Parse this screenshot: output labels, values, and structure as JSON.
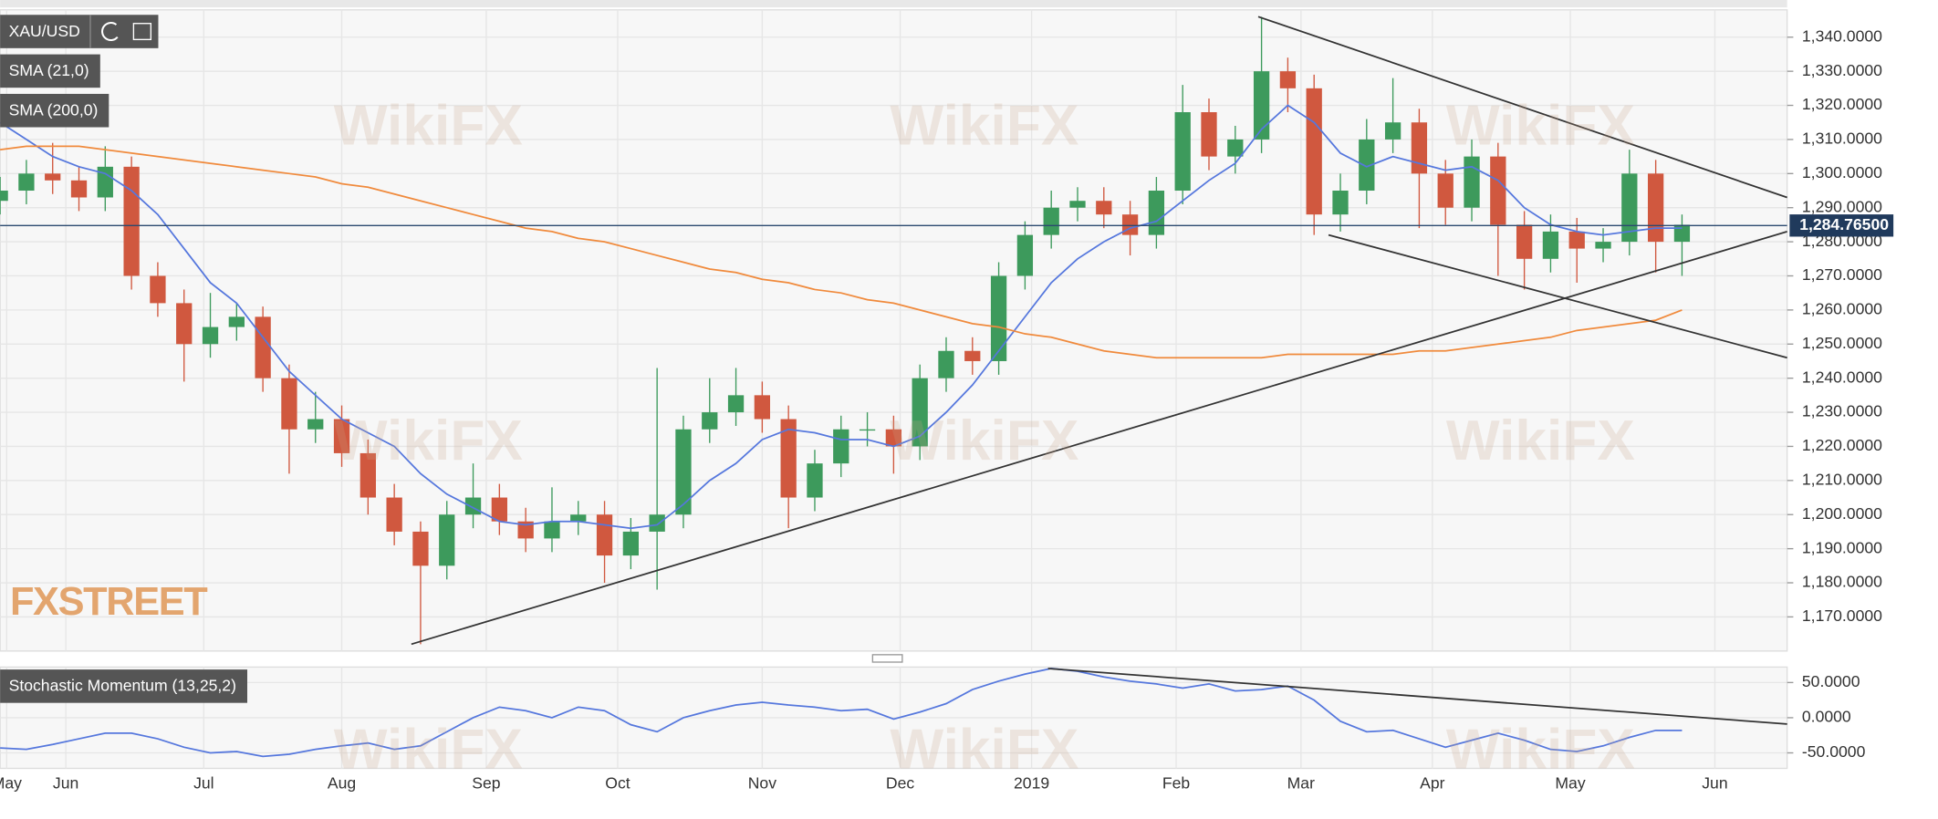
{
  "chart_data": {
    "type": "candlestick",
    "title": "XAU/USD",
    "watermark": "WikiFX",
    "logo": "FXSTREET",
    "grid": true,
    "up_color": "#3d9a5c",
    "down_color": "#d0583f",
    "xlim": [
      0,
      272
    ],
    "xticks": [
      {
        "value": 1,
        "label": "May"
      },
      {
        "value": 10,
        "label": "Jun"
      },
      {
        "value": 31,
        "label": "Jul"
      },
      {
        "value": 52,
        "label": "Aug"
      },
      {
        "value": 74,
        "label": "Sep"
      },
      {
        "value": 94,
        "label": "Oct"
      },
      {
        "value": 116,
        "label": "Nov"
      },
      {
        "value": 137,
        "label": "Dec"
      },
      {
        "value": 157,
        "label": "2019"
      },
      {
        "value": 179,
        "label": "Feb"
      },
      {
        "value": 198,
        "label": "Mar"
      },
      {
        "value": 218,
        "label": "Apr"
      },
      {
        "value": 239,
        "label": "May"
      },
      {
        "value": 261,
        "label": "Jun"
      }
    ],
    "ylim": [
      1160,
      1348
    ],
    "yticks": [
      {
        "value": 1170,
        "label": "1,170.0000"
      },
      {
        "value": 1180,
        "label": "1,180.0000"
      },
      {
        "value": 1190,
        "label": "1,190.0000"
      },
      {
        "value": 1200,
        "label": "1,200.0000"
      },
      {
        "value": 1210,
        "label": "1,210.0000"
      },
      {
        "value": 1220,
        "label": "1,220.0000"
      },
      {
        "value": 1230,
        "label": "1,230.0000"
      },
      {
        "value": 1240,
        "label": "1,240.0000"
      },
      {
        "value": 1250,
        "label": "1,250.0000"
      },
      {
        "value": 1260,
        "label": "1,260.0000"
      },
      {
        "value": 1270,
        "label": "1,270.0000"
      },
      {
        "value": 1280,
        "label": "1,280.0000"
      },
      {
        "value": 1290,
        "label": "1,290.0000"
      },
      {
        "value": 1300,
        "label": "1,300.0000"
      },
      {
        "value": 1310,
        "label": "1,310.0000"
      },
      {
        "value": 1320,
        "label": "1,320.0000"
      },
      {
        "value": 1330,
        "label": "1,330.0000"
      },
      {
        "value": 1340,
        "label": "1,340.0000"
      }
    ],
    "x": [
      0,
      4,
      8,
      12,
      16,
      20,
      24,
      28,
      32,
      36,
      40,
      44,
      48,
      52,
      56,
      60,
      64,
      68,
      72,
      76,
      80,
      84,
      88,
      92,
      96,
      100,
      104,
      108,
      112,
      116,
      120,
      124,
      128,
      132,
      136,
      140,
      144,
      148,
      152,
      156,
      160,
      164,
      168,
      172,
      176,
      180,
      184,
      188,
      192,
      196,
      200,
      204,
      208,
      212,
      216,
      220,
      224,
      228,
      232,
      236,
      240,
      244,
      248,
      252,
      256
    ],
    "open": [
      1292,
      1295,
      1300,
      1298,
      1293,
      1302,
      1270,
      1262,
      1250,
      1255,
      1258,
      1240,
      1225,
      1228,
      1218,
      1205,
      1195,
      1185,
      1200,
      1205,
      1198,
      1193,
      1198,
      1200,
      1188,
      1195,
      1200,
      1225,
      1230,
      1235,
      1228,
      1205,
      1215,
      1225,
      1225,
      1220,
      1240,
      1248,
      1245,
      1270,
      1282,
      1290,
      1292,
      1288,
      1282,
      1295,
      1318,
      1305,
      1310,
      1330,
      1325,
      1288,
      1295,
      1310,
      1315,
      1300,
      1290,
      1305,
      1285,
      1275,
      1283,
      1278,
      1280,
      1300,
      1280
    ],
    "high": [
      1299,
      1304,
      1309,
      1302,
      1308,
      1305,
      1274,
      1266,
      1265,
      1262,
      1261,
      1244,
      1236,
      1232,
      1222,
      1209,
      1198,
      1204,
      1215,
      1209,
      1202,
      1208,
      1204,
      1204,
      1199,
      1243,
      1229,
      1240,
      1243,
      1239,
      1232,
      1219,
      1229,
      1230,
      1229,
      1244,
      1252,
      1252,
      1274,
      1286,
      1295,
      1296,
      1296,
      1292,
      1299,
      1326,
      1322,
      1314,
      1346,
      1334,
      1329,
      1300,
      1316,
      1328,
      1319,
      1304,
      1310,
      1309,
      1289,
      1288,
      1287,
      1284,
      1307,
      1304,
      1288
    ],
    "low": [
      1288,
      1291,
      1294,
      1289,
      1289,
      1266,
      1258,
      1239,
      1246,
      1251,
      1236,
      1212,
      1221,
      1214,
      1200,
      1191,
      1162,
      1181,
      1196,
      1194,
      1189,
      1189,
      1194,
      1180,
      1184,
      1178,
      1196,
      1221,
      1226,
      1224,
      1196,
      1201,
      1211,
      1220,
      1212,
      1216,
      1236,
      1241,
      1241,
      1266,
      1278,
      1286,
      1284,
      1276,
      1278,
      1291,
      1301,
      1300,
      1306,
      1318,
      1282,
      1283,
      1291,
      1306,
      1284,
      1285,
      1286,
      1270,
      1266,
      1271,
      1268,
      1274,
      1276,
      1271,
      1270
    ],
    "close": [
      1295,
      1300,
      1298,
      1293,
      1302,
      1270,
      1262,
      1250,
      1255,
      1258,
      1240,
      1225,
      1228,
      1218,
      1205,
      1195,
      1185,
      1200,
      1205,
      1198,
      1193,
      1198,
      1200,
      1188,
      1195,
      1200,
      1225,
      1230,
      1235,
      1228,
      1205,
      1215,
      1225,
      1225,
      1220,
      1240,
      1248,
      1245,
      1270,
      1282,
      1290,
      1292,
      1288,
      1282,
      1295,
      1318,
      1305,
      1310,
      1330,
      1325,
      1288,
      1295,
      1310,
      1315,
      1300,
      1290,
      1305,
      1285,
      1275,
      1283,
      1278,
      1280,
      1300,
      1280,
      1285
    ],
    "series": [
      {
        "name": "SMA (21,0)",
        "color": "#5577dd",
        "values": [
          1315,
          1310,
          1305,
          1302,
          1300,
          1295,
          1288,
          1278,
          1268,
          1262,
          1252,
          1242,
          1235,
          1228,
          1224,
          1220,
          1212,
          1206,
          1202,
          1198,
          1197,
          1198,
          1198,
          1197,
          1196,
          1197,
          1203,
          1210,
          1215,
          1222,
          1225,
          1224,
          1222,
          1222,
          1220,
          1223,
          1230,
          1238,
          1248,
          1258,
          1268,
          1275,
          1280,
          1284,
          1286,
          1292,
          1298,
          1303,
          1313,
          1320,
          1315,
          1306,
          1302,
          1305,
          1303,
          1301,
          1302,
          1298,
          1290,
          1285,
          1283,
          1282,
          1283,
          1284,
          1284
        ]
      },
      {
        "name": "SMA (200,0)",
        "color": "#f08a3c",
        "values": [
          1307,
          1308,
          1308,
          1308,
          1307,
          1306,
          1305,
          1304,
          1303,
          1302,
          1301,
          1300,
          1299,
          1297,
          1296,
          1294,
          1292,
          1290,
          1288,
          1286,
          1284,
          1283,
          1281,
          1280,
          1278,
          1276,
          1274,
          1272,
          1271,
          1269,
          1268,
          1266,
          1265,
          1263,
          1262,
          1260,
          1258,
          1256,
          1255,
          1253,
          1252,
          1250,
          1248,
          1247,
          1246,
          1246,
          1246,
          1246,
          1246,
          1247,
          1247,
          1247,
          1247,
          1247,
          1248,
          1248,
          1249,
          1250,
          1251,
          1252,
          1254,
          1255,
          1256,
          1257,
          1260
        ]
      }
    ],
    "last_price": {
      "value": 1284.765,
      "label": "1,284.76500"
    },
    "trendlines": [
      {
        "x": [
          62.6,
          272
        ],
        "y": [
          1162,
          1283
        ]
      },
      {
        "x": [
          191.5,
          272
        ],
        "y": [
          1346,
          1293
        ]
      },
      {
        "x": [
          202.2,
          272
        ],
        "y": [
          1282,
          1246
        ]
      }
    ],
    "indicator": {
      "name": "Stochastic Momentum (13,25,2)",
      "color": "#5577dd",
      "ylim": [
        -72,
        72
      ],
      "yticks": [
        {
          "value": 50,
          "label": "50.0000"
        },
        {
          "value": 0,
          "label": "0.0000"
        },
        {
          "value": -50,
          "label": "-50.0000"
        }
      ],
      "values": [
        -43,
        -45,
        -38,
        -30,
        -22,
        -22,
        -30,
        -42,
        -50,
        -48,
        -55,
        -52,
        -45,
        -40,
        -36,
        -45,
        -40,
        -20,
        0,
        15,
        10,
        0,
        15,
        10,
        -10,
        -20,
        0,
        10,
        18,
        22,
        18,
        15,
        10,
        12,
        -2,
        8,
        20,
        40,
        52,
        62,
        70,
        66,
        58,
        52,
        48,
        42,
        48,
        38,
        40,
        45,
        25,
        -5,
        -20,
        -18,
        -30,
        -42,
        -32,
        -22,
        -32,
        -45,
        -48,
        -40,
        -28,
        -18,
        -18
      ],
      "trendline": {
        "x": [
          159.5,
          272
        ],
        "y": [
          70,
          -9
        ]
      }
    }
  }
}
